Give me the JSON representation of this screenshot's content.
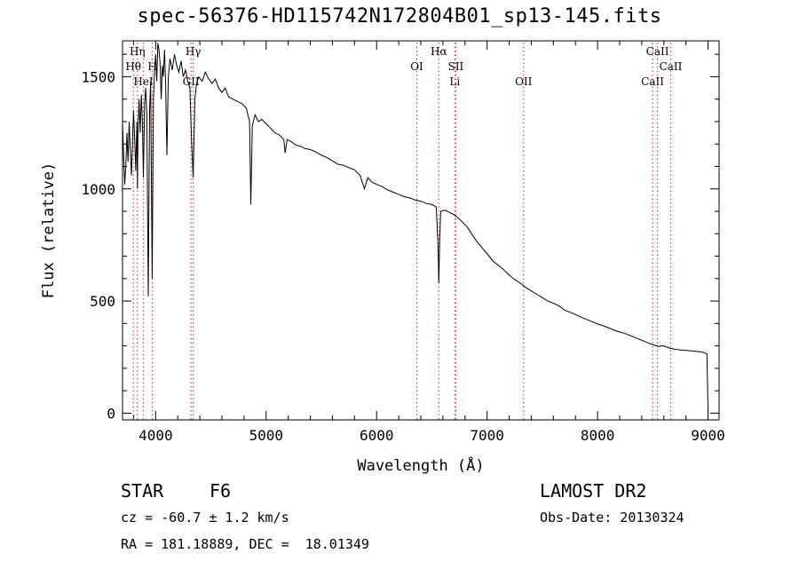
{
  "title": "spec-56376-HD115742N172804B01_sp13-145.fits",
  "footer": {
    "obj_type": "STAR",
    "subclass": "F6",
    "survey": "LAMOST DR2",
    "cz": "cz = -60.7 ± 1.2 km/s",
    "obs_date": "Obs-Date: 20130324",
    "radec": "RA = 181.18889, DEC =  18.01349"
  },
  "colors": {
    "line_marker": "#e04040",
    "ink": "#000000"
  },
  "chart_data": {
    "type": "line",
    "title": "spec-56376-HD115742N172804B01_sp13-145.fits",
    "xlabel": "Wavelength (Å)",
    "ylabel": "Flux (relative)",
    "xlim": [
      3700,
      9100
    ],
    "ylim": [
      -30,
      1660
    ],
    "xticks": [
      4000,
      5000,
      6000,
      7000,
      8000,
      9000
    ],
    "yticks": [
      0,
      500,
      1000,
      1500
    ],
    "grid": false,
    "series": [
      {
        "points": [
          [
            3700,
            1300
          ],
          [
            3710,
            1150
          ],
          [
            3720,
            1020
          ],
          [
            3730,
            1100
          ],
          [
            3740,
            1250
          ],
          [
            3750,
            1120
          ],
          [
            3760,
            1300
          ],
          [
            3770,
            1180
          ],
          [
            3780,
            1060
          ],
          [
            3790,
            1200
          ],
          [
            3800,
            1350
          ],
          [
            3810,
            1220
          ],
          [
            3820,
            1080
          ],
          [
            3830,
            1300
          ],
          [
            3835,
            1000
          ],
          [
            3840,
            1250
          ],
          [
            3850,
            1400
          ],
          [
            3860,
            1250
          ],
          [
            3870,
            1420
          ],
          [
            3880,
            1300
          ],
          [
            3889,
            1050
          ],
          [
            3900,
            1380
          ],
          [
            3910,
            1450
          ],
          [
            3920,
            1330
          ],
          [
            3933,
            520
          ],
          [
            3945,
            1350
          ],
          [
            3955,
            1480
          ],
          [
            3968,
            600
          ],
          [
            3980,
            1400
          ],
          [
            3990,
            1520
          ],
          [
            4000,
            1600
          ],
          [
            4010,
            1480
          ],
          [
            4020,
            1650
          ],
          [
            4030,
            1620
          ],
          [
            4040,
            1560
          ],
          [
            4050,
            1400
          ],
          [
            4060,
            1550
          ],
          [
            4070,
            1500
          ],
          [
            4080,
            1620
          ],
          [
            4090,
            1480
          ],
          [
            4102,
            1150
          ],
          [
            4115,
            1500
          ],
          [
            4130,
            1580
          ],
          [
            4150,
            1530
          ],
          [
            4170,
            1600
          ],
          [
            4190,
            1550
          ],
          [
            4210,
            1520
          ],
          [
            4230,
            1570
          ],
          [
            4250,
            1500
          ],
          [
            4270,
            1530
          ],
          [
            4290,
            1480
          ],
          [
            4310,
            1450
          ],
          [
            4326,
            1200
          ],
          [
            4340,
            1050
          ],
          [
            4355,
            1400
          ],
          [
            4370,
            1470
          ],
          [
            4390,
            1500
          ],
          [
            4420,
            1480
          ],
          [
            4450,
            1520
          ],
          [
            4480,
            1490
          ],
          [
            4510,
            1470
          ],
          [
            4540,
            1490
          ],
          [
            4570,
            1450
          ],
          [
            4600,
            1430
          ],
          [
            4630,
            1450
          ],
          [
            4660,
            1410
          ],
          [
            4700,
            1400
          ],
          [
            4740,
            1390
          ],
          [
            4780,
            1380
          ],
          [
            4820,
            1360
          ],
          [
            4850,
            1300
          ],
          [
            4861,
            930
          ],
          [
            4875,
            1280
          ],
          [
            4900,
            1330
          ],
          [
            4930,
            1300
          ],
          [
            4960,
            1310
          ],
          [
            5000,
            1290
          ],
          [
            5040,
            1270
          ],
          [
            5080,
            1250
          ],
          [
            5120,
            1240
          ],
          [
            5160,
            1220
          ],
          [
            5172,
            1160
          ],
          [
            5190,
            1220
          ],
          [
            5230,
            1210
          ],
          [
            5270,
            1195
          ],
          [
            5310,
            1190
          ],
          [
            5350,
            1180
          ],
          [
            5400,
            1175
          ],
          [
            5450,
            1165
          ],
          [
            5500,
            1150
          ],
          [
            5550,
            1140
          ],
          [
            5600,
            1125
          ],
          [
            5650,
            1110
          ],
          [
            5700,
            1105
          ],
          [
            5750,
            1095
          ],
          [
            5800,
            1085
          ],
          [
            5850,
            1060
          ],
          [
            5890,
            1000
          ],
          [
            5920,
            1050
          ],
          [
            5960,
            1030
          ],
          [
            6000,
            1020
          ],
          [
            6050,
            1010
          ],
          [
            6100,
            995
          ],
          [
            6150,
            985
          ],
          [
            6200,
            975
          ],
          [
            6250,
            965
          ],
          [
            6300,
            960
          ],
          [
            6350,
            950
          ],
          [
            6400,
            945
          ],
          [
            6450,
            935
          ],
          [
            6500,
            930
          ],
          [
            6540,
            920
          ],
          [
            6555,
            760
          ],
          [
            6563,
            580
          ],
          [
            6570,
            760
          ],
          [
            6580,
            900
          ],
          [
            6620,
            905
          ],
          [
            6660,
            895
          ],
          [
            6700,
            885
          ],
          [
            6740,
            870
          ],
          [
            6780,
            850
          ],
          [
            6820,
            830
          ],
          [
            6860,
            800
          ],
          [
            6900,
            770
          ],
          [
            6950,
            740
          ],
          [
            7000,
            710
          ],
          [
            7050,
            680
          ],
          [
            7100,
            660
          ],
          [
            7150,
            640
          ],
          [
            7200,
            615
          ],
          [
            7250,
            595
          ],
          [
            7300,
            580
          ],
          [
            7350,
            560
          ],
          [
            7400,
            545
          ],
          [
            7450,
            530
          ],
          [
            7500,
            515
          ],
          [
            7550,
            500
          ],
          [
            7600,
            490
          ],
          [
            7650,
            478
          ],
          [
            7700,
            460
          ],
          [
            7750,
            450
          ],
          [
            7800,
            440
          ],
          [
            7850,
            428
          ],
          [
            7900,
            418
          ],
          [
            7950,
            408
          ],
          [
            8000,
            398
          ],
          [
            8050,
            390
          ],
          [
            8100,
            380
          ],
          [
            8150,
            370
          ],
          [
            8200,
            362
          ],
          [
            8250,
            355
          ],
          [
            8300,
            345
          ],
          [
            8350,
            335
          ],
          [
            8400,
            325
          ],
          [
            8450,
            315
          ],
          [
            8500,
            305
          ],
          [
            8550,
            298
          ],
          [
            8600,
            300
          ],
          [
            8650,
            290
          ],
          [
            8700,
            285
          ],
          [
            8750,
            282
          ],
          [
            8800,
            280
          ],
          [
            8850,
            278
          ],
          [
            8900,
            275
          ],
          [
            8950,
            272
          ],
          [
            8990,
            265
          ],
          [
            9000,
            0
          ]
        ]
      }
    ],
    "lines": [
      {
        "label": "Hη",
        "wavelength": 3835,
        "tier": 0,
        "color": "#e04040"
      },
      {
        "label": "Hθ",
        "wavelength": 3798,
        "tier": 1,
        "color": "#e04040"
      },
      {
        "label": "HeI",
        "wavelength": 3889,
        "tier": 2,
        "color": "#e04040"
      },
      {
        "label": "H",
        "wavelength": 3970,
        "tier": 1,
        "color": "#e04040"
      },
      {
        "label": "Hγ",
        "wavelength": 4340,
        "tier": 0,
        "color": "#e04040"
      },
      {
        "label": "GII",
        "wavelength": 4320,
        "tier": 2,
        "color": "#e04040"
      },
      {
        "label": "Hα",
        "wavelength": 6563,
        "tier": 0,
        "color": "#e04040"
      },
      {
        "label": "OI",
        "wavelength": 6364,
        "tier": 1,
        "color": "#e04040"
      },
      {
        "label": "SII",
        "wavelength": 6717,
        "tier": 1,
        "color": "#e04040"
      },
      {
        "label": "Li",
        "wavelength": 6708,
        "tier": 2,
        "color": "#e04040"
      },
      {
        "label": "OII",
        "wavelength": 7330,
        "tier": 2,
        "color": "#e04040"
      },
      {
        "label": "CaII",
        "wavelength": 8542,
        "tier": 0,
        "color": "#e04040"
      },
      {
        "label": "CaII",
        "wavelength": 8662,
        "tier": 1,
        "color": "#e04040"
      },
      {
        "label": "CaII",
        "wavelength": 8498,
        "tier": 2,
        "color": "#e04040"
      }
    ]
  }
}
